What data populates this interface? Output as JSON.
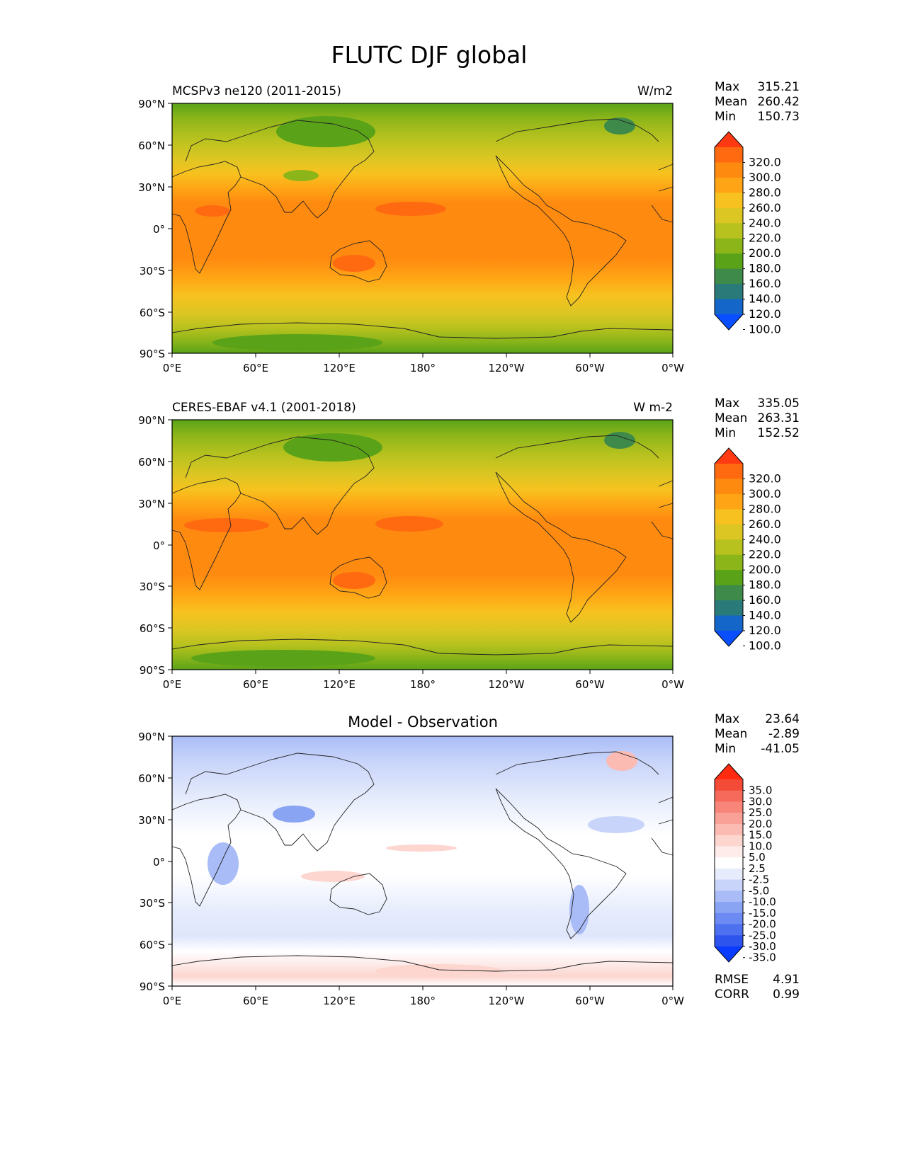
{
  "title": "FLUTC DJF global",
  "lat_ticks": [
    "90°N",
    "60°N",
    "30°N",
    "0°",
    "30°S",
    "60°S",
    "90°S"
  ],
  "lon_ticks": [
    "0°E",
    "60°E",
    "120°E",
    "180°",
    "120°W",
    "60°W",
    "0°W"
  ],
  "stat_labels": {
    "max": "Max",
    "mean": "Mean",
    "min": "Min",
    "rmse": "RMSE",
    "corr": "CORR"
  },
  "panels": [
    {
      "id": "model",
      "left_title": "MCSPv3 ne120 (2011-2015)",
      "center_title": "",
      "units": "W/m2",
      "stats": {
        "max": "315.21",
        "mean": "260.42",
        "min": "150.73"
      },
      "colorbar": {
        "labels": [
          "320.0",
          "300.0",
          "280.0",
          "260.0",
          "240.0",
          "220.0",
          "200.0",
          "180.0",
          "160.0",
          "140.0",
          "120.0",
          "100.0"
        ],
        "colors": [
          "#ff3a12",
          "#ff6a10",
          "#ff8a10",
          "#ffa515",
          "#f7c21f",
          "#dcc623",
          "#b7c21e",
          "#8cb51a",
          "#5aa318",
          "#3e8a4a",
          "#2a7a7a",
          "#1466c8",
          "#0a4fff"
        ]
      },
      "extra": null
    },
    {
      "id": "observation",
      "left_title": "CERES-EBAF v4.1 (2001-2018)",
      "center_title": "",
      "units": "W m-2",
      "stats": {
        "max": "335.05",
        "mean": "263.31",
        "min": "152.52"
      },
      "colorbar": {
        "labels": [
          "320.0",
          "300.0",
          "280.0",
          "260.0",
          "240.0",
          "220.0",
          "200.0",
          "180.0",
          "160.0",
          "140.0",
          "120.0",
          "100.0"
        ],
        "colors": [
          "#ff3a12",
          "#ff6a10",
          "#ff8a10",
          "#ffa515",
          "#f7c21f",
          "#dcc623",
          "#b7c21e",
          "#8cb51a",
          "#5aa318",
          "#3e8a4a",
          "#2a7a7a",
          "#1466c8",
          "#0a4fff"
        ]
      },
      "extra": null
    },
    {
      "id": "difference",
      "left_title": "",
      "center_title": "Model - Observation",
      "units": "",
      "stats": {
        "max": "23.64",
        "mean": "-2.89",
        "min": "-41.05"
      },
      "colorbar": {
        "labels": [
          "35.0",
          "30.0",
          "25.0",
          "20.0",
          "15.0",
          "10.0",
          "5.0",
          "2.5",
          "-2.5",
          "-5.0",
          "-10.0",
          "-15.0",
          "-20.0",
          "-25.0",
          "-30.0",
          "-35.0"
        ],
        "colors": [
          "#ff2a10",
          "#f44a38",
          "#f56a5a",
          "#f7857a",
          "#f9a196",
          "#fbbbb2",
          "#fcd6cf",
          "#fdecea",
          "#ffffff",
          "#e6ecfc",
          "#c8d4fa",
          "#a9bcf7",
          "#8aa4f4",
          "#6b8af2",
          "#4c70f0",
          "#2d55ee",
          "#0a3cff"
        ]
      },
      "extra": {
        "rmse": "4.91",
        "corr": "0.99"
      }
    }
  ]
}
